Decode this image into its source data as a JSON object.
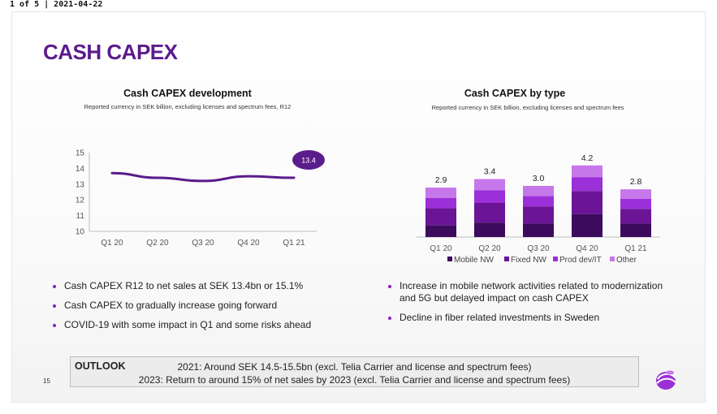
{
  "header": {
    "page_info": "1 of 5 | 2021-04-22"
  },
  "slide": {
    "title": "CASH CAPEX",
    "page_number": "15",
    "accent_color": "#5b1c8c"
  },
  "chart_data": [
    {
      "type": "line",
      "title": "Cash CAPEX development",
      "subtitle": "Reported currency in SEK billion, excluding licenses and spectrum fees, R12",
      "categories": [
        "Q1 20",
        "Q2 20",
        "Q3 20",
        "Q4 20",
        "Q1 21"
      ],
      "series": [
        {
          "values": [
            13.7,
            13.4,
            13.2,
            13.5,
            13.4
          ]
        }
      ],
      "yticks": [
        "15",
        "14",
        "13",
        "12",
        "11",
        "10"
      ],
      "ylim": [
        10,
        15
      ],
      "annotation": "13.4",
      "grid": false,
      "color": "#5b1c8c"
    },
    {
      "type": "bar",
      "stacked": true,
      "title": "Cash CAPEX by type",
      "subtitle": "Reported currency in SEK billion, excluding licenses and spectrum fees",
      "categories": [
        "Q1 20",
        "Q2 20",
        "Q3 20",
        "Q4 20",
        "Q1 21"
      ],
      "totals": [
        "2.9",
        "3.4",
        "3.0",
        "4.2",
        "2.8"
      ],
      "series": [
        {
          "name": "Mobile NW",
          "color": "#3d0b5e",
          "values": [
            0.7,
            0.85,
            0.8,
            1.35,
            0.8
          ]
        },
        {
          "name": "Fixed NW",
          "color": "#6b1496",
          "values": [
            1.0,
            1.15,
            1.0,
            1.35,
            0.85
          ]
        },
        {
          "name": "Prod dev/IT",
          "color": "#9b2fd8",
          "values": [
            0.6,
            0.75,
            0.6,
            0.8,
            0.6
          ]
        },
        {
          "name": "Other",
          "color": "#c677ea",
          "values": [
            0.6,
            0.65,
            0.6,
            0.7,
            0.55
          ]
        }
      ],
      "legend_position": "bottom",
      "grid": false
    }
  ],
  "bullets_left": [
    "Cash CAPEX R12 to net sales at SEK 13.4bn or 15.1%",
    "Cash CAPEX to gradually increase going forward",
    "COVID-19 with some impact in Q1 and some risks ahead"
  ],
  "bullets_right": [
    "Increase in mobile network activities related to modernization and 5G but delayed impact on cash CAPEX",
    "Decline in fiber related investments in Sweden"
  ],
  "outlook": {
    "label": "OUTLOOK",
    "line1": "2021: Around SEK 14.5-15.5bn (excl. Telia Carrier and license and spectrum fees)",
    "line2": "2023: Return to around 15% of net sales by 2023 (excl. Telia Carrier and license and spectrum fees)"
  },
  "icons": {
    "logo": "telia-logo-icon",
    "bullet": "bullet-dot-icon"
  }
}
